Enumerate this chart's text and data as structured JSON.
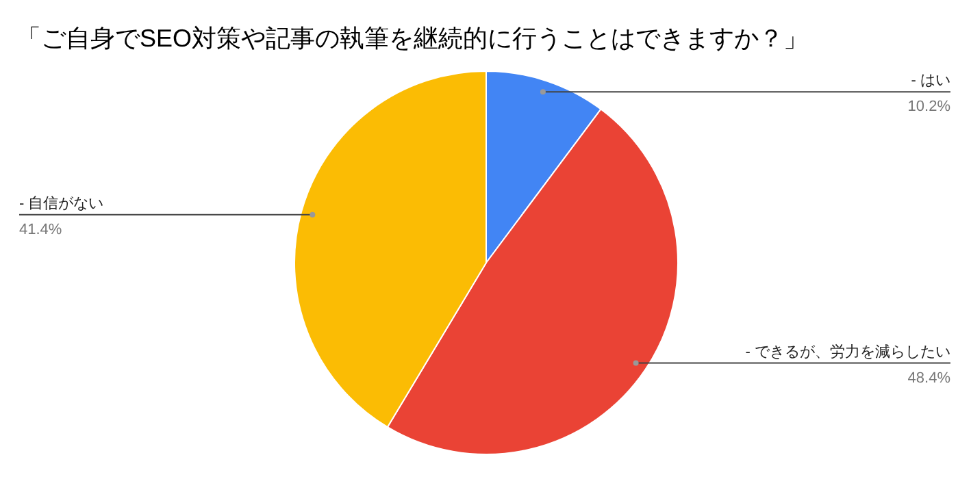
{
  "chart_data": {
    "type": "pie",
    "title": "「ご自身でSEO対策や記事の執筆を継続的に行うことはできますか？」",
    "categories": [
      "- はい",
      "- できるが、労力を減らしたい",
      "- 自信がない"
    ],
    "values": [
      10.2,
      48.4,
      41.4
    ],
    "value_labels": [
      "10.2%",
      "48.4%",
      "41.4%"
    ],
    "colors": [
      "#4285f4",
      "#ea4335",
      "#fbbc04"
    ]
  }
}
